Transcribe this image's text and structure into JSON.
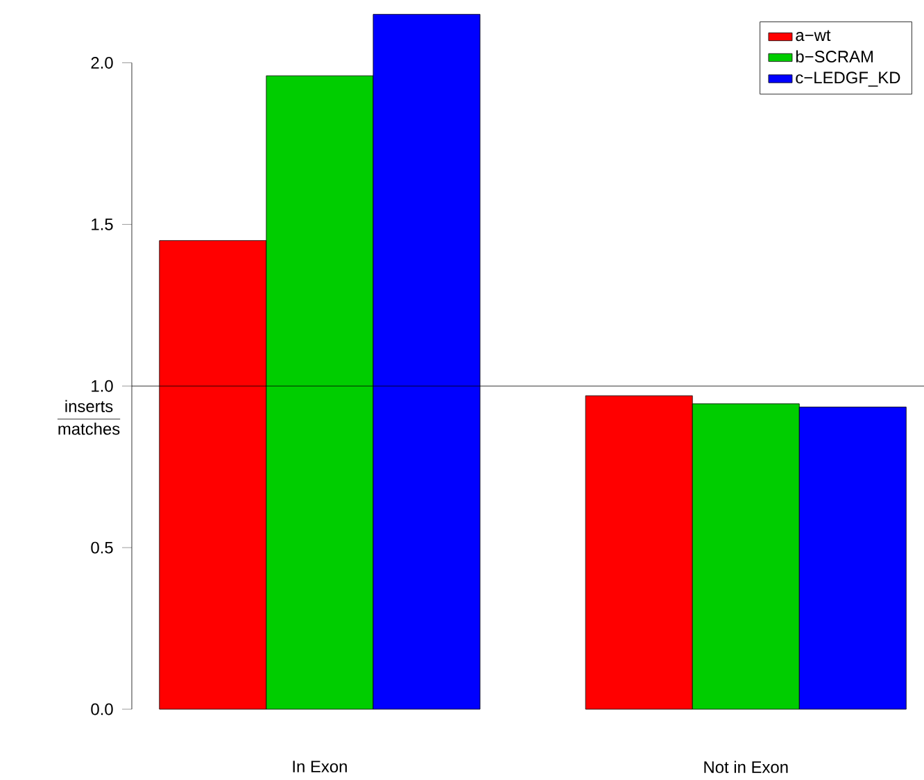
{
  "chart_data": {
    "type": "bar",
    "categories": [
      "In Exon",
      "Not in Exon"
    ],
    "series": [
      {
        "name": "a−wt",
        "color": "#ff0000",
        "values": [
          1.45,
          0.97
        ]
      },
      {
        "name": "b−SCRAM",
        "color": "#00cd00",
        "values": [
          1.96,
          0.945
        ]
      },
      {
        "name": "c−LEDGF_KD",
        "color": "#0000ff",
        "values": [
          2.15,
          0.935
        ]
      }
    ],
    "ylabel": "\\frac{\\mbox{inserts}}{\\mbox{matches}}",
    "ylim": [
      0,
      2.16
    ],
    "yticks": [
      {
        "value": 0,
        "label": "0.0"
      },
      0.5,
      {
        "value": 1,
        "label": "1.0"
      },
      1.5,
      {
        "value": 2,
        "label": "2.0"
      }
    ],
    "ref_lines": [
      {
        "axis": "y",
        "value": 1,
        "color": "#000000"
      }
    ],
    "legend": "top right",
    "grid": false
  }
}
